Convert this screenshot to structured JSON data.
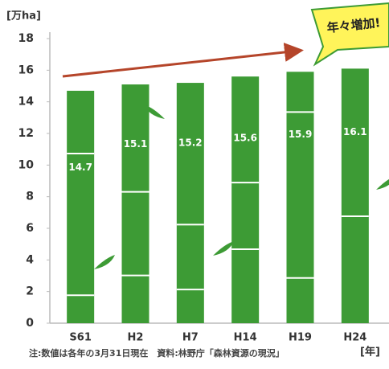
{
  "chart_data": {
    "type": "bar",
    "y_unit_label": "[万ha]",
    "x_unit_label": "[年]",
    "note": "注:数値は各年の3月31日現在　資料:林野庁「森林資源の現況」",
    "annotation": "年々増加!",
    "categories": [
      "S61",
      "H2",
      "H7",
      "H14",
      "H19",
      "H24"
    ],
    "values": [
      14.7,
      15.1,
      15.2,
      15.6,
      15.9,
      16.1
    ],
    "color": "#3d9b35",
    "ylim": [
      0,
      18
    ],
    "yticks": [
      0,
      2,
      4,
      6,
      8,
      10,
      12,
      14,
      16,
      18
    ],
    "grid": false
  }
}
